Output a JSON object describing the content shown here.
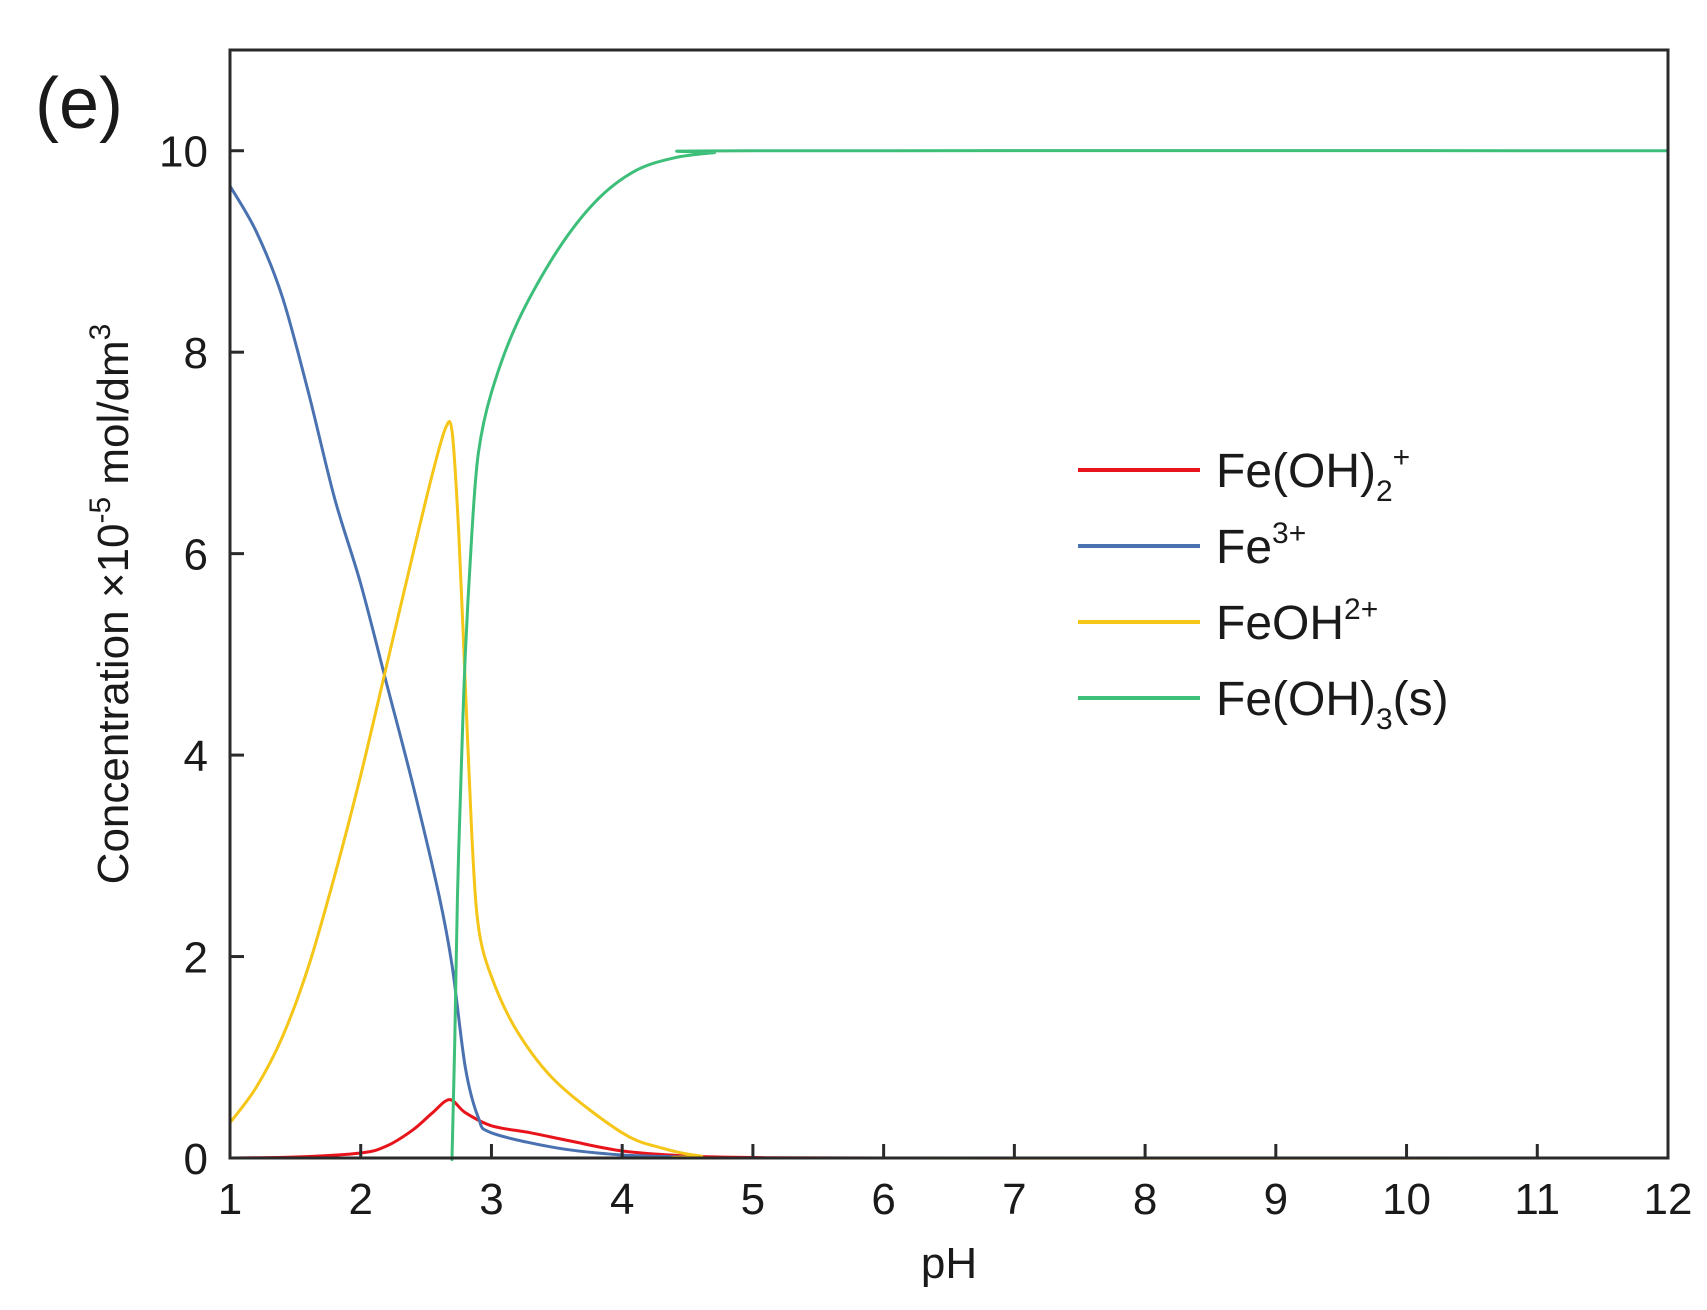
{
  "chart_data": {
    "type": "line",
    "panel_label": "(e)",
    "title": "",
    "xlabel": "pH",
    "ylabel": {
      "main": "Concentration ×10",
      "exp": "-5",
      "unit": " mol/dm",
      "unit_exp": "3"
    },
    "xlim": [
      1,
      12
    ],
    "ylim": [
      0,
      11
    ],
    "xticks": [
      1,
      2,
      3,
      4,
      5,
      6,
      7,
      8,
      9,
      10,
      11,
      12
    ],
    "yticks": [
      0,
      2,
      4,
      6,
      8,
      10
    ],
    "grid": false,
    "legend_position": "center-right",
    "series": [
      {
        "name": "Fe(OH)2+",
        "label_parts": [
          [
            "Fe(OH)",
            ""
          ],
          [
            "2",
            "sub"
          ],
          [
            "+",
            "sup"
          ]
        ],
        "color": "#e8141c",
        "x": [
          1,
          1.5,
          2,
          2.2,
          2.4,
          2.55,
          2.68,
          2.8,
          3.0,
          3.3,
          3.6,
          4.0,
          4.5,
          5,
          6,
          12
        ],
        "y": [
          0,
          0.01,
          0.05,
          0.12,
          0.28,
          0.45,
          0.58,
          0.45,
          0.32,
          0.25,
          0.17,
          0.07,
          0.02,
          0.005,
          0,
          0
        ]
      },
      {
        "name": "Fe3+",
        "label_parts": [
          [
            "Fe",
            ""
          ],
          [
            "3+",
            "sup"
          ]
        ],
        "color": "#4a72b0",
        "x": [
          1,
          1.2,
          1.4,
          1.6,
          1.8,
          2.0,
          2.2,
          2.4,
          2.6,
          2.7,
          2.8,
          2.9,
          3.0,
          3.5,
          4.0,
          4.5,
          5,
          12
        ],
        "y": [
          9.65,
          9.2,
          8.55,
          7.6,
          6.55,
          5.7,
          4.7,
          3.7,
          2.6,
          1.9,
          0.9,
          0.4,
          0.25,
          0.1,
          0.03,
          0.01,
          0,
          0
        ]
      },
      {
        "name": "FeOH2+",
        "label_parts": [
          [
            "FeOH",
            ""
          ],
          [
            "2+",
            "sup"
          ]
        ],
        "color": "#f5c518",
        "x": [
          1,
          1.2,
          1.4,
          1.6,
          1.8,
          2.0,
          2.2,
          2.4,
          2.55,
          2.65,
          2.7,
          2.75,
          2.8,
          2.85,
          2.9,
          3.0,
          3.2,
          3.5,
          4.0,
          4.3,
          4.6,
          5,
          12
        ],
        "y": [
          0.35,
          0.7,
          1.2,
          1.9,
          2.8,
          3.8,
          4.9,
          6.0,
          6.8,
          7.25,
          7.2,
          6.2,
          4.7,
          3.2,
          2.3,
          1.8,
          1.25,
          0.75,
          0.25,
          0.1,
          0.02,
          0,
          0
        ]
      },
      {
        "name": "Fe(OH)3(s)",
        "label_parts": [
          [
            "Fe(OH)",
            ""
          ],
          [
            "3",
            "sub"
          ],
          [
            "(s)",
            ""
          ]
        ],
        "color": "#3dbf7a",
        "x": [
          2.7,
          2.7,
          2.72,
          2.74,
          2.77,
          2.8,
          2.85,
          2.9,
          3.0,
          3.2,
          3.5,
          3.8,
          4.1,
          4.4,
          4.7,
          5.0,
          12
        ],
        "y": [
          0,
          0.1,
          1.2,
          2.6,
          3.9,
          5.0,
          6.2,
          7.0,
          7.6,
          8.3,
          9.0,
          9.5,
          9.8,
          9.93,
          9.98,
          10.0,
          10.0
        ]
      }
    ]
  }
}
